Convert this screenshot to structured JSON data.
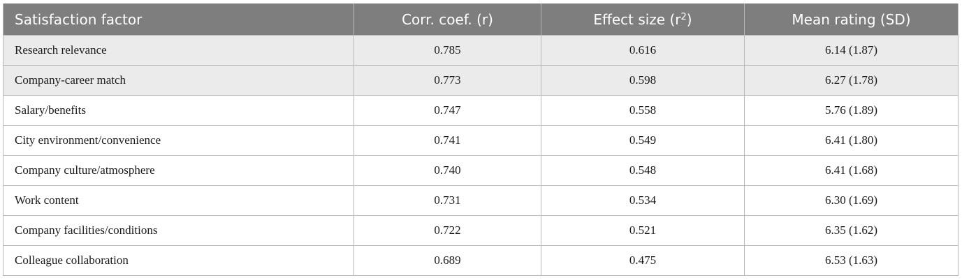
{
  "table": {
    "headers": {
      "factor": "Satisfaction factor",
      "corr": "Corr. coef. (r)",
      "effect_main": "Effect size (r",
      "effect_sup": "2",
      "effect_close": ")",
      "mean": "Mean rating (SD)"
    },
    "rows": [
      {
        "factor": "Research relevance",
        "r": "0.785",
        "r2": "0.616",
        "mean": "6.14 (1.87)"
      },
      {
        "factor": "Company-career match",
        "r": "0.773",
        "r2": "0.598",
        "mean": "6.27 (1.78)"
      },
      {
        "factor": "Salary/benefits",
        "r": "0.747",
        "r2": "0.558",
        "mean": "5.76 (1.89)"
      },
      {
        "factor": "City environment/convenience",
        "r": "0.741",
        "r2": "0.549",
        "mean": "6.41 (1.80)"
      },
      {
        "factor": "Company culture/atmosphere",
        "r": "0.740",
        "r2": "0.548",
        "mean": "6.41 (1.68)"
      },
      {
        "factor": "Work content",
        "r": "0.731",
        "r2": "0.534",
        "mean": "6.30 (1.69)"
      },
      {
        "factor": "Company facilities/conditions",
        "r": "0.722",
        "r2": "0.521",
        "mean": "6.35 (1.62)"
      },
      {
        "factor": "Colleague collaboration",
        "r": "0.689",
        "r2": "0.475",
        "mean": "6.53 (1.63)"
      }
    ]
  },
  "colors": {
    "header_bg": "#7e7e7e",
    "shaded_row_bg": "#ebebeb",
    "border": "#b8b8b8"
  }
}
